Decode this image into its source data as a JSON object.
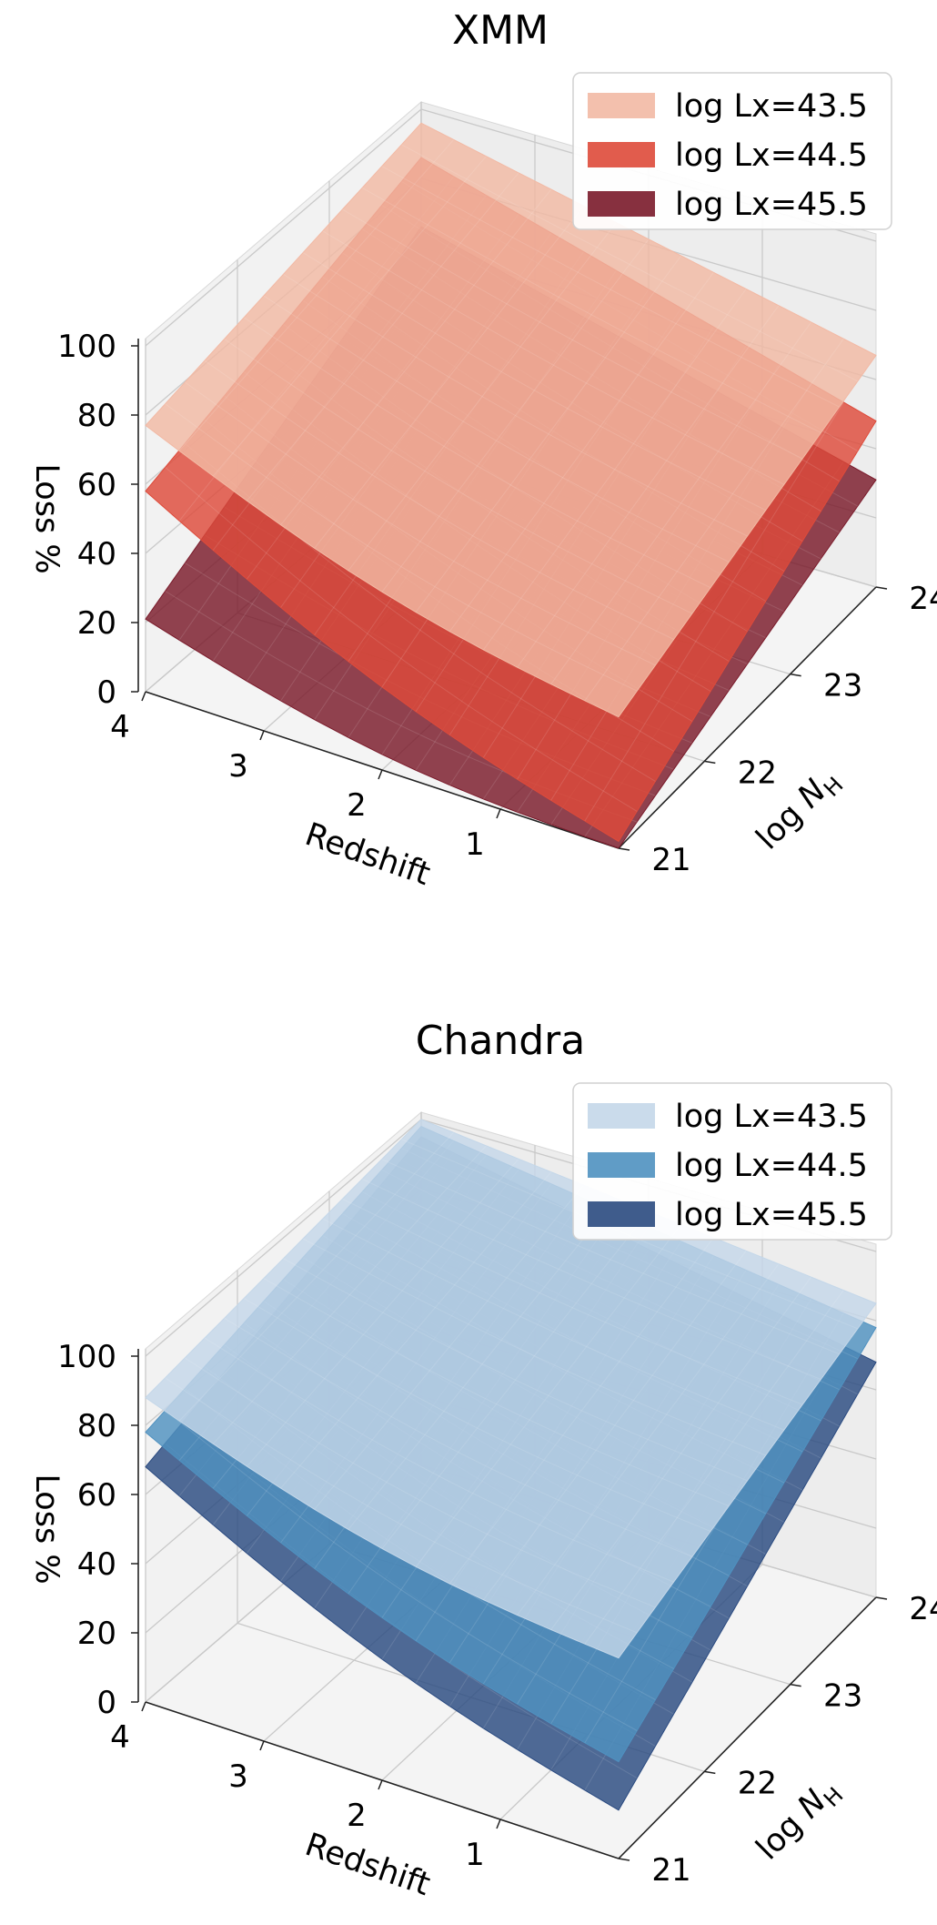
{
  "chart_data": [
    {
      "type": "surface",
      "title": "XMM",
      "xlabel": "Redshift",
      "ylabel": "log N",
      "ylabel_sub": "H",
      "zlabel": "Loss %",
      "x_ticks": [
        "1",
        "2",
        "3",
        "4"
      ],
      "y_ticks": [
        "21",
        "22",
        "23",
        "24"
      ],
      "z_ticks": [
        "0",
        "20",
        "40",
        "60",
        "80",
        "100"
      ],
      "legend_placement": "top-right",
      "grid": true,
      "series": [
        {
          "name": "log Lx=43.5",
          "color": "#f2b9a4",
          "corners": {
            "x4_y21": 77,
            "x0_y21": 38,
            "x0_y24": 67,
            "x4_y24": 96
          }
        },
        {
          "name": "log Lx=44.5",
          "color": "#de4a3a",
          "corners": {
            "x4_y21": 58,
            "x0_y21": 2,
            "x0_y24": 48,
            "x4_y24": 86
          }
        },
        {
          "name": "log Lx=45.5",
          "color": "#7a1a2a",
          "corners": {
            "x4_y21": 21,
            "x0_y21": 0,
            "x0_y24": 31,
            "x4_y24": 66
          }
        }
      ]
    },
    {
      "type": "surface",
      "title": "Chandra",
      "xlabel": "Redshift",
      "ylabel": "log N",
      "ylabel_sub": "H",
      "zlabel": "Loss %",
      "x_ticks": [
        "1",
        "2",
        "3",
        "4"
      ],
      "y_ticks": [
        "21",
        "22",
        "23",
        "24"
      ],
      "z_ticks": [
        "0",
        "20",
        "40",
        "60",
        "80",
        "100"
      ],
      "legend_placement": "top-right",
      "grid": true,
      "series": [
        {
          "name": "log Lx=43.5",
          "color": "#c4d7e9",
          "corners": {
            "x4_y21": 88,
            "x0_y21": 58,
            "x0_y24": 85,
            "x4_y24": 100
          }
        },
        {
          "name": "log Lx=44.5",
          "color": "#4f91c0",
          "corners": {
            "x4_y21": 78,
            "x0_y21": 28,
            "x0_y24": 78,
            "x4_y24": 98
          }
        },
        {
          "name": "log Lx=45.5",
          "color": "#2a4a80",
          "corners": {
            "x4_y21": 68,
            "x0_y21": 14,
            "x0_y24": 68,
            "x4_y24": 95
          }
        }
      ]
    }
  ]
}
